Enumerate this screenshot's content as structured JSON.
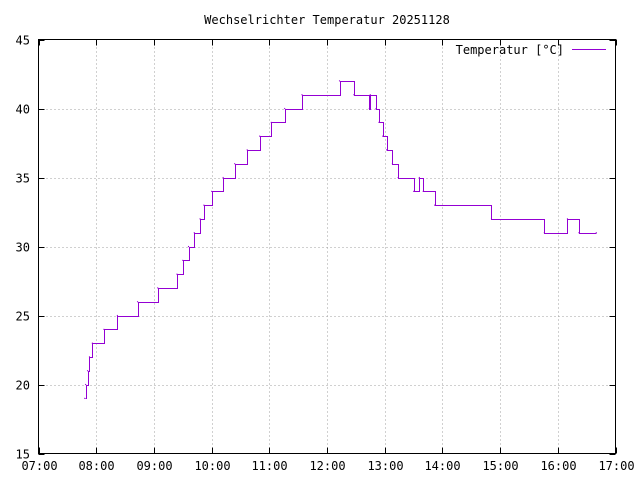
{
  "chart_data": {
    "type": "line",
    "title": "Wechselrichter Temperatur 20251128",
    "xlabel": "",
    "ylabel": "",
    "x_ticks": [
      "07:00",
      "08:00",
      "09:00",
      "10:00",
      "11:00",
      "12:00",
      "13:00",
      "14:00",
      "15:00",
      "16:00",
      "17:00"
    ],
    "y_ticks": [
      "15",
      "20",
      "25",
      "30",
      "35",
      "40",
      "45"
    ],
    "xlim": [
      "07:00",
      "17:00"
    ],
    "ylim": [
      15,
      45
    ],
    "grid": true,
    "legend_position": "top-right",
    "series": [
      {
        "name": "Temperatur [°C]",
        "color": "#9400d3",
        "step": true,
        "points": [
          [
            "07:48",
            19
          ],
          [
            "07:49",
            20
          ],
          [
            "07:51",
            21
          ],
          [
            "07:53",
            22
          ],
          [
            "07:56",
            23
          ],
          [
            "08:08",
            24
          ],
          [
            "08:22",
            25
          ],
          [
            "08:43",
            26
          ],
          [
            "09:04",
            27
          ],
          [
            "09:24",
            28
          ],
          [
            "09:30",
            29
          ],
          [
            "09:36",
            30
          ],
          [
            "09:42",
            31
          ],
          [
            "09:48",
            32
          ],
          [
            "09:52",
            33
          ],
          [
            "10:00",
            34
          ],
          [
            "10:12",
            35
          ],
          [
            "10:24",
            36
          ],
          [
            "10:37",
            37
          ],
          [
            "10:50",
            38
          ],
          [
            "11:02",
            39
          ],
          [
            "11:16",
            40
          ],
          [
            "11:34",
            41
          ],
          [
            "12:13",
            42
          ],
          [
            "12:28",
            41
          ],
          [
            "12:44",
            40
          ],
          [
            "12:45",
            41
          ],
          [
            "12:51",
            40
          ],
          [
            "12:54",
            39
          ],
          [
            "12:58",
            38
          ],
          [
            "13:02",
            37
          ],
          [
            "13:08",
            36
          ],
          [
            "13:14",
            35
          ],
          [
            "13:30",
            34
          ],
          [
            "13:36",
            35
          ],
          [
            "13:40",
            34
          ],
          [
            "13:52",
            33
          ],
          [
            "14:51",
            32
          ],
          [
            "15:46",
            31
          ],
          [
            "16:10",
            32
          ],
          [
            "16:22",
            31
          ],
          [
            "16:40",
            31
          ]
        ]
      }
    ]
  }
}
